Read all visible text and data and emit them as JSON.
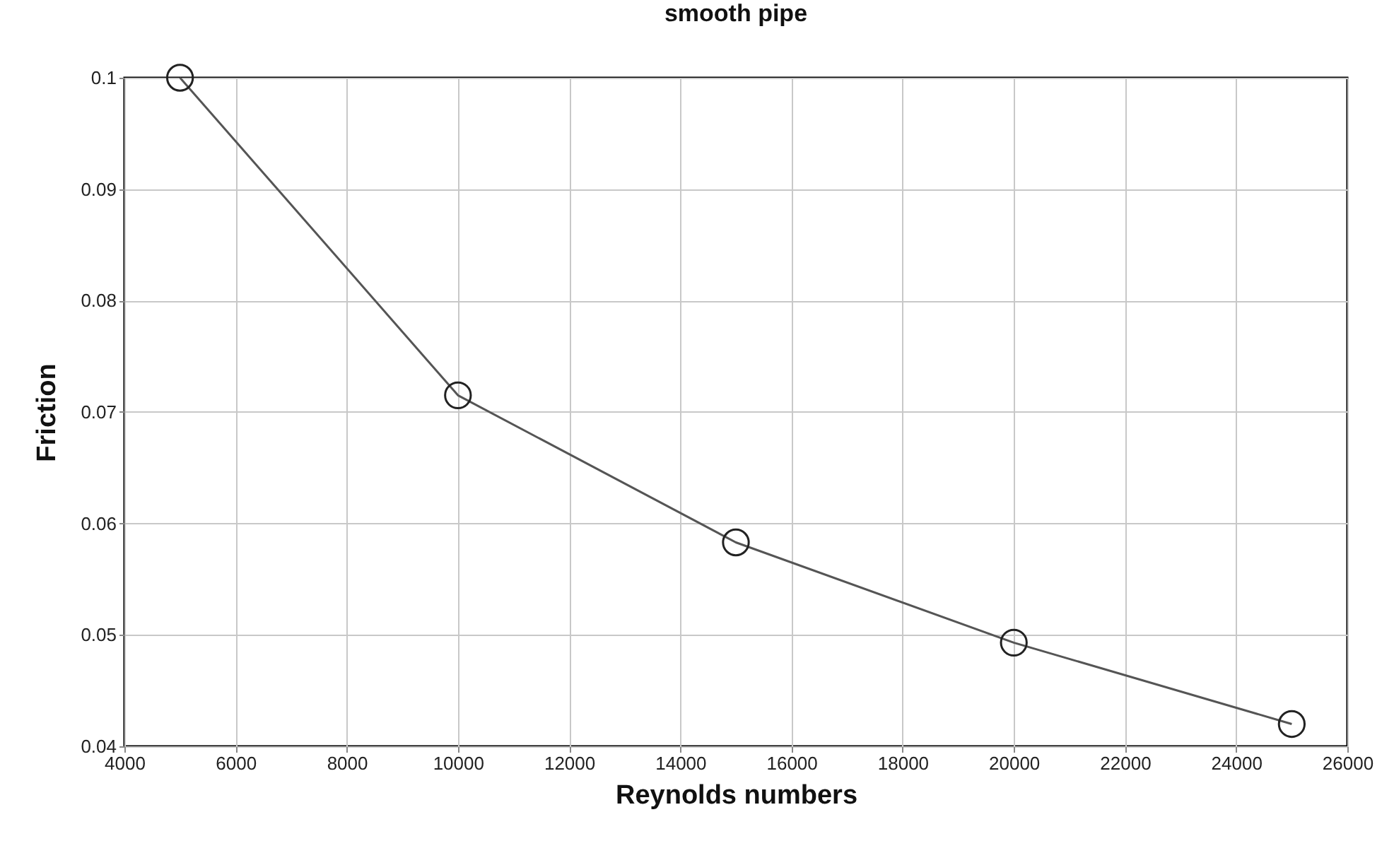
{
  "chart_data": {
    "type": "line",
    "title": "smooth pipe",
    "xlabel": "Reynolds numbers",
    "ylabel": "Friction",
    "x": [
      5000,
      10000,
      15000,
      20000,
      25000
    ],
    "series": [
      {
        "color": "#555555",
        "values": [
          0.1,
          0.0715,
          0.0583,
          0.0493,
          0.042
        ]
      }
    ],
    "xlim": [
      4000,
      26000
    ],
    "xticks": [
      4000,
      6000,
      8000,
      10000,
      12000,
      14000,
      16000,
      18000,
      20000,
      22000,
      24000,
      26000
    ],
    "ylim": [
      0.04,
      0.1
    ],
    "yticks": [
      0.04,
      0.05,
      0.06,
      0.07,
      0.08,
      0.09,
      0.1
    ],
    "grid": true,
    "marker": "circle",
    "line_style": "solid"
  }
}
